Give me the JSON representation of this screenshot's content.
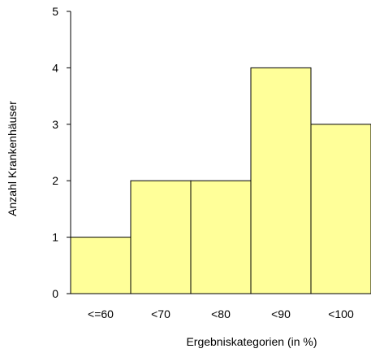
{
  "chart_data": {
    "type": "bar",
    "title": "",
    "xlabel": "Ergebniskategorien (in %)",
    "ylabel": "Anzahl Krankenhäuser",
    "categories": [
      "<=60",
      "<70",
      "<80",
      "<90",
      "<100"
    ],
    "values": [
      1,
      2,
      2,
      4,
      3
    ],
    "ylim": [
      0,
      5
    ],
    "yticks": [
      "0",
      "1",
      "2",
      "3",
      "4",
      "5"
    ],
    "grid": false,
    "legend": "none"
  },
  "colors": {
    "bar_fill": "#FFFF99",
    "bar_stroke": "#000000",
    "axis": "#000000"
  }
}
